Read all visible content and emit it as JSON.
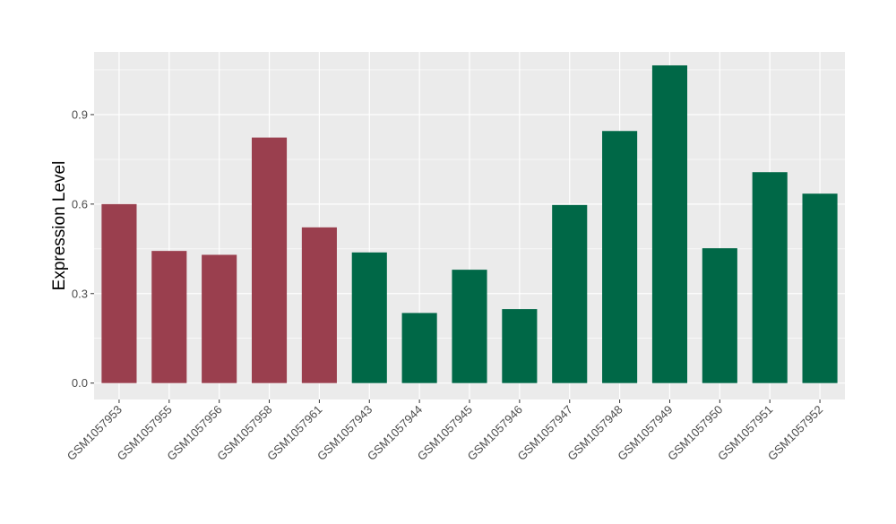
{
  "chart_data": {
    "type": "bar",
    "title": "",
    "xlabel": "",
    "ylabel": "Expression Level",
    "ylim": [
      -0.055,
      1.11
    ],
    "yticks": [
      0.0,
      0.3,
      0.6,
      0.9
    ],
    "ytick_labels": [
      "0.0",
      "0.3",
      "0.6",
      "0.9"
    ],
    "grid": true,
    "legend": "none",
    "background_color": "#ebebeb",
    "grid_color": "#ffffff",
    "group_colors": {
      "group_a": "#9a3f4e",
      "group_b": "#006847"
    },
    "categories": [
      "GSM1057953",
      "GSM1057955",
      "GSM1057956",
      "GSM1057958",
      "GSM1057961",
      "GSM1057943",
      "GSM1057944",
      "GSM1057945",
      "GSM1057946",
      "GSM1057947",
      "GSM1057948",
      "GSM1057949",
      "GSM1057950",
      "GSM1057951",
      "GSM1057952"
    ],
    "values": [
      0.6,
      0.443,
      0.43,
      0.823,
      0.522,
      0.438,
      0.235,
      0.38,
      0.248,
      0.597,
      0.845,
      1.065,
      0.452,
      0.707,
      0.635
    ],
    "groups": [
      "group_a",
      "group_a",
      "group_a",
      "group_a",
      "group_a",
      "group_b",
      "group_b",
      "group_b",
      "group_b",
      "group_b",
      "group_b",
      "group_b",
      "group_b",
      "group_b",
      "group_b"
    ]
  }
}
